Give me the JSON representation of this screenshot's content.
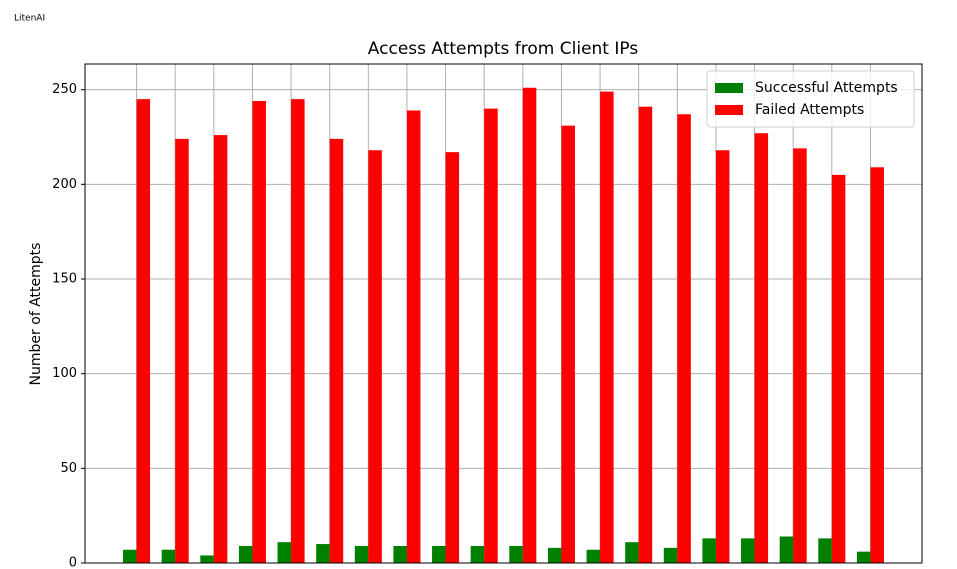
{
  "app_name": "LitenAI",
  "chart_data": {
    "type": "bar",
    "title": "Access Attempts from Client IPs",
    "y_label": "Number of Attempts",
    "categories": [
      null,
      null,
      null,
      null,
      null,
      null,
      null,
      null,
      null,
      null,
      null,
      null,
      null,
      null,
      null,
      null,
      null,
      null,
      null,
      null
    ],
    "series": [
      {
        "name": "Successful Attempts",
        "color": "green",
        "values": [
          7,
          7,
          4,
          9,
          11,
          10,
          9,
          9,
          9,
          9,
          9,
          8,
          7,
          11,
          8,
          13,
          13,
          14,
          13,
          6
        ]
      },
      {
        "name": "Failed Attempts",
        "color": "red",
        "values": [
          245,
          224,
          226,
          244,
          245,
          224,
          218,
          239,
          217,
          240,
          251,
          231,
          249,
          241,
          237,
          218,
          227,
          219,
          205,
          209
        ]
      }
    ],
    "ylim": [
      0,
      263.55
    ],
    "yticks": [
      0,
      50,
      100,
      150,
      200,
      250
    ],
    "grid": true,
    "legend": "upper right"
  }
}
